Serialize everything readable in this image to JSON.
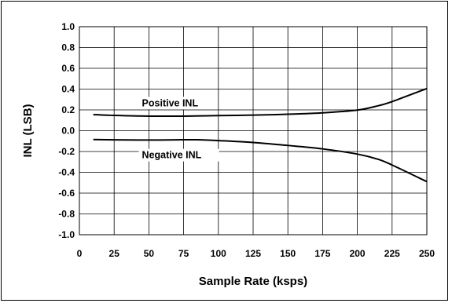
{
  "chart_data": {
    "type": "line",
    "xlabel": "Sample Rate (ksps)",
    "ylabel": "INL (LSB)",
    "xlim": [
      0,
      250
    ],
    "ylim": [
      -1.0,
      1.0
    ],
    "x_ticks": [
      "0",
      "25",
      "50",
      "75",
      "100",
      "125",
      "150",
      "175",
      "200",
      "225",
      "250"
    ],
    "y_ticks": [
      "1.0",
      "0.8",
      "0.6",
      "0.4",
      "0.2",
      "0.0",
      "-0.2",
      "-0.4",
      "-0.6",
      "-0.8",
      "-1.0"
    ],
    "grid": true,
    "series": [
      {
        "name": "Positive INL",
        "x": [
          10,
          25,
          50,
          75,
          100,
          125,
          150,
          175,
          200,
          215,
          225,
          250
        ],
        "y": [
          0.155,
          0.147,
          0.14,
          0.14,
          0.145,
          0.15,
          0.158,
          0.172,
          0.198,
          0.24,
          0.28,
          0.405
        ]
      },
      {
        "name": "Negative INL",
        "x": [
          10,
          25,
          50,
          75,
          85,
          100,
          125,
          150,
          175,
          200,
          215,
          225,
          250
        ],
        "y": [
          -0.085,
          -0.088,
          -0.09,
          -0.087,
          -0.087,
          -0.095,
          -0.113,
          -0.142,
          -0.175,
          -0.225,
          -0.275,
          -0.33,
          -0.49
        ]
      }
    ]
  }
}
